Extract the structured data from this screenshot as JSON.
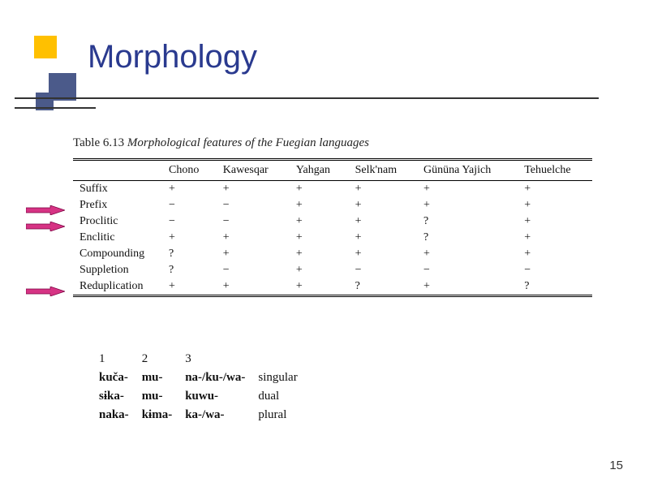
{
  "title": "Morphology",
  "slide_number": "15",
  "decor": {
    "yellow": "#ffc000",
    "navy": "#4b5a8a",
    "title_color": "#2a3a8f"
  },
  "table": {
    "caption_num": "Table 6.13",
    "caption_title": "Morphological features of the Fuegian languages",
    "columns": [
      "",
      "Chono",
      "Kawesqar",
      "Yahgan",
      "Selk'nam",
      "Gününa Yajich",
      "Tehuelche"
    ],
    "rows": [
      {
        "label": "Suffix",
        "cells": [
          "+",
          "+",
          "+",
          "+",
          "+",
          "+"
        ],
        "arrow": false
      },
      {
        "label": "Prefix",
        "cells": [
          "−",
          "−",
          "+",
          "+",
          "+",
          "+"
        ],
        "arrow": true
      },
      {
        "label": "Proclitic",
        "cells": [
          "−",
          "−",
          "+",
          "+",
          "?",
          "+"
        ],
        "arrow": true
      },
      {
        "label": "Enclitic",
        "cells": [
          "+",
          "+",
          "+",
          "+",
          "?",
          "+"
        ],
        "arrow": false
      },
      {
        "label": "Compounding",
        "cells": [
          "?",
          "+",
          "+",
          "+",
          "+",
          "+"
        ],
        "arrow": false
      },
      {
        "label": "Suppletion",
        "cells": [
          "?",
          "−",
          "+",
          "−",
          "−",
          "−"
        ],
        "arrow": false
      },
      {
        "label": "Reduplication",
        "cells": [
          "+",
          "+",
          "+",
          "?",
          "+",
          "?"
        ],
        "arrow": true
      }
    ]
  },
  "arrow_style": {
    "fill": "#d63384",
    "stroke": "#7a0040"
  },
  "number_paradigm": {
    "headers": [
      "1",
      "2",
      "3",
      ""
    ],
    "rows": [
      [
        "kuča-",
        "mu-",
        "na-/ku-/wa-",
        "singular"
      ],
      [
        "sɨka-",
        "mu-",
        "kuwu-",
        "dual"
      ],
      [
        "naka-",
        "kɨma-",
        "ka-/wa-",
        "plural"
      ]
    ]
  }
}
